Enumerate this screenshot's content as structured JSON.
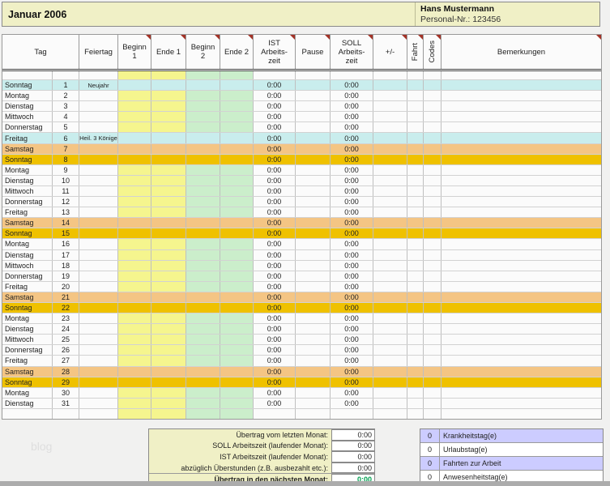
{
  "title_bar": {
    "month": "Januar 2006",
    "employee_name": "Hans Mustermann",
    "personal_nr": "Personal-Nr.: 123456"
  },
  "table": {
    "headers": {
      "tag": "Tag",
      "feiertag": "Feiertag",
      "beginn1": "Beginn\n1",
      "ende1": "Ende 1",
      "beginn2": "Beginn\n2",
      "ende2": "Ende 2",
      "ist": "IST\nArbeits-\nzeit",
      "pause": "Pause",
      "soll": "SOLL\nArbeits-\nzeit",
      "plusminus": "+/-",
      "fahrt": "Fahrt",
      "codes": "Codes",
      "bemerkungen": "Bemerkungen"
    },
    "rows": [
      {
        "day": "Sonntag",
        "num": "1",
        "feiertag": "Neujahr",
        "type": "holiday",
        "ist": "0:00",
        "soll": "0:00"
      },
      {
        "day": "Montag",
        "num": "2",
        "feiertag": "",
        "type": "weekday",
        "ist": "0:00",
        "soll": "0:00"
      },
      {
        "day": "Dienstag",
        "num": "3",
        "feiertag": "",
        "type": "weekday",
        "ist": "0:00",
        "soll": "0:00"
      },
      {
        "day": "Mittwoch",
        "num": "4",
        "feiertag": "",
        "type": "weekday",
        "ist": "0:00",
        "soll": "0:00"
      },
      {
        "day": "Donnerstag",
        "num": "5",
        "feiertag": "",
        "type": "weekday",
        "ist": "0:00",
        "soll": "0:00"
      },
      {
        "day": "Freitag",
        "num": "6",
        "feiertag": "Heil. 3 Könige",
        "type": "holiday",
        "ist": "0:00",
        "soll": "0:00"
      },
      {
        "day": "Samstag",
        "num": "7",
        "feiertag": "",
        "type": "saturday",
        "ist": "0:00",
        "soll": "0:00"
      },
      {
        "day": "Sonntag",
        "num": "8",
        "feiertag": "",
        "type": "sunday",
        "ist": "0:00",
        "soll": "0:00"
      },
      {
        "day": "Montag",
        "num": "9",
        "feiertag": "",
        "type": "weekday",
        "ist": "0:00",
        "soll": "0:00"
      },
      {
        "day": "Dienstag",
        "num": "10",
        "feiertag": "",
        "type": "weekday",
        "ist": "0:00",
        "soll": "0:00"
      },
      {
        "day": "Mittwoch",
        "num": "11",
        "feiertag": "",
        "type": "weekday",
        "ist": "0:00",
        "soll": "0:00"
      },
      {
        "day": "Donnerstag",
        "num": "12",
        "feiertag": "",
        "type": "weekday",
        "ist": "0:00",
        "soll": "0:00"
      },
      {
        "day": "Freitag",
        "num": "13",
        "feiertag": "",
        "type": "weekday",
        "ist": "0:00",
        "soll": "0:00"
      },
      {
        "day": "Samstag",
        "num": "14",
        "feiertag": "",
        "type": "saturday",
        "ist": "0:00",
        "soll": "0:00"
      },
      {
        "day": "Sonntag",
        "num": "15",
        "feiertag": "",
        "type": "sunday",
        "ist": "0:00",
        "soll": "0:00"
      },
      {
        "day": "Montag",
        "num": "16",
        "feiertag": "",
        "type": "weekday",
        "ist": "0:00",
        "soll": "0:00"
      },
      {
        "day": "Dienstag",
        "num": "17",
        "feiertag": "",
        "type": "weekday",
        "ist": "0:00",
        "soll": "0:00"
      },
      {
        "day": "Mittwoch",
        "num": "18",
        "feiertag": "",
        "type": "weekday",
        "ist": "0:00",
        "soll": "0:00"
      },
      {
        "day": "Donnerstag",
        "num": "19",
        "feiertag": "",
        "type": "weekday",
        "ist": "0:00",
        "soll": "0:00"
      },
      {
        "day": "Freitag",
        "num": "20",
        "feiertag": "",
        "type": "weekday",
        "ist": "0:00",
        "soll": "0:00"
      },
      {
        "day": "Samstag",
        "num": "21",
        "feiertag": "",
        "type": "saturday",
        "ist": "0:00",
        "soll": "0:00"
      },
      {
        "day": "Sonntag",
        "num": "22",
        "feiertag": "",
        "type": "sunday",
        "ist": "0:00",
        "soll": "0:00"
      },
      {
        "day": "Montag",
        "num": "23",
        "feiertag": "",
        "type": "weekday",
        "ist": "0:00",
        "soll": "0:00"
      },
      {
        "day": "Dienstag",
        "num": "24",
        "feiertag": "",
        "type": "weekday",
        "ist": "0:00",
        "soll": "0:00"
      },
      {
        "day": "Mittwoch",
        "num": "25",
        "feiertag": "",
        "type": "weekday",
        "ist": "0:00",
        "soll": "0:00"
      },
      {
        "day": "Donnerstag",
        "num": "26",
        "feiertag": "",
        "type": "weekday",
        "ist": "0:00",
        "soll": "0:00"
      },
      {
        "day": "Freitag",
        "num": "27",
        "feiertag": "",
        "type": "weekday",
        "ist": "0:00",
        "soll": "0:00"
      },
      {
        "day": "Samstag",
        "num": "28",
        "feiertag": "",
        "type": "saturday",
        "ist": "0:00",
        "soll": "0:00"
      },
      {
        "day": "Sonntag",
        "num": "29",
        "feiertag": "",
        "type": "sunday",
        "ist": "0:00",
        "soll": "0:00"
      },
      {
        "day": "Montag",
        "num": "30",
        "feiertag": "",
        "type": "weekday",
        "ist": "0:00",
        "soll": "0:00"
      },
      {
        "day": "Dienstag",
        "num": "31",
        "feiertag": "",
        "type": "weekday",
        "ist": "0:00",
        "soll": "0:00"
      },
      {
        "day": "",
        "num": "",
        "feiertag": "",
        "type": "empty",
        "ist": "",
        "soll": ""
      }
    ]
  },
  "summary": {
    "rows": [
      {
        "label": "Übertrag vom letzten Monat:",
        "value": "0:00"
      },
      {
        "label": "SOLL Arbeitszeit (laufender Monat):",
        "value": "0:00"
      },
      {
        "label": "IST Arbeitszeit (laufender Monat):",
        "value": "0:00"
      },
      {
        "label": "abzüglich Überstunden (z.B. ausbezahlt etc.):",
        "value": "0:00"
      },
      {
        "label": "Übertrag in den nächsten Monat:",
        "value": "0:00"
      }
    ]
  },
  "stats": {
    "rows": [
      {
        "count": "0",
        "label": "Krankheitstag(e)",
        "highlight": true
      },
      {
        "count": "0",
        "label": "Urlaubstag(e)",
        "highlight": false
      },
      {
        "count": "0",
        "label": "Fahrten zur Arbeit",
        "highlight": true
      },
      {
        "count": "0",
        "label": "Anwesenheitstag(e)",
        "highlight": false
      }
    ]
  },
  "watermark": "blog",
  "colors": {
    "title_yellow": "#F0F0C6",
    "cell_yellow": "#F5F58E",
    "cell_green": "#CBEECB",
    "holiday_cyan": "#C9EDED",
    "saturday_orange": "#F4C584",
    "sunday_gold": "#EFC100",
    "stat_lavender": "#CCCCFF",
    "carryover_green": "#00A050",
    "note_triangle_red": "#A33226"
  }
}
